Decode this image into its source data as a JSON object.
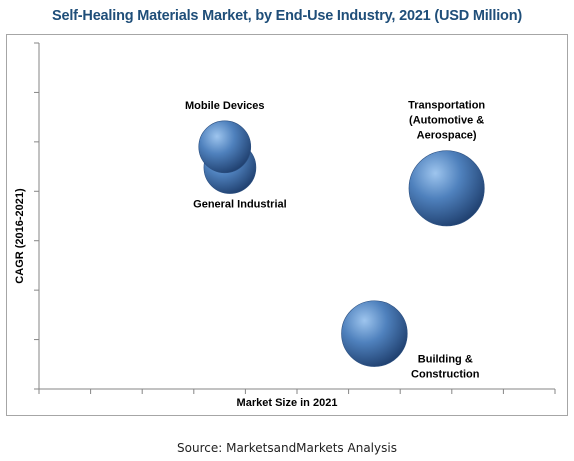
{
  "chart_data": {
    "type": "bubble",
    "title": "Self-Healing Materials Market, by End-Use Industry, 2021 (USD Million)",
    "xlabel": "Market Size in 2021",
    "ylabel": "CAGR (2016-2021)",
    "xlim": [
      0,
      10
    ],
    "ylim": [
      0,
      10
    ],
    "grid": false,
    "legend": "none",
    "bubbles": [
      {
        "label_lines": [
          "Mobile Devices"
        ],
        "x": 3.6,
        "y": 7.0,
        "size": 1.0,
        "label_pos": "above"
      },
      {
        "label_lines": [
          "General Industrial"
        ],
        "x": 3.7,
        "y": 6.4,
        "size": 1.0,
        "label_pos": "below"
      },
      {
        "label_lines": [
          "Transportation",
          "(Automotive &",
          "Aerospace)"
        ],
        "x": 7.9,
        "y": 5.8,
        "size": 2.1,
        "label_pos": "above"
      },
      {
        "label_lines": [
          "Building &",
          "Construction"
        ],
        "x": 6.5,
        "y": 1.6,
        "size": 1.6,
        "label_pos": "below-right"
      }
    ],
    "colors": {
      "bubble_light": "#9ec5ee",
      "bubble_mid": "#4f81bd",
      "bubble_dark": "#1f3f6e"
    }
  },
  "source": "Source: MarketsandMarkets Analysis"
}
